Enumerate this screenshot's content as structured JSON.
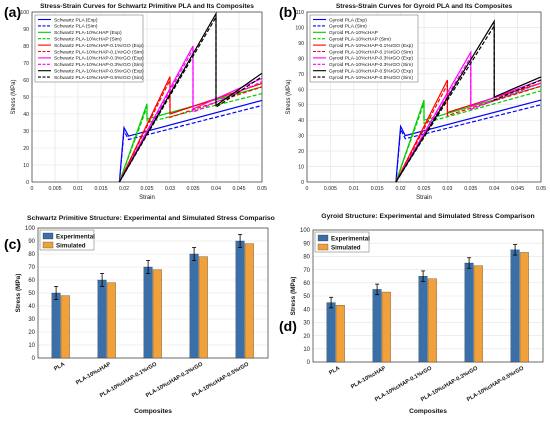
{
  "panels": [
    {
      "label": "(a)"
    },
    {
      "label": "(b)"
    },
    {
      "label": "(c)"
    },
    {
      "label": "(d)"
    }
  ],
  "chart_data": [
    {
      "id": "a",
      "type": "line",
      "title": "Stress-Strain Curves for Schwartz Primitive PLA and Its Composites",
      "xlabel": "Strain",
      "ylabel": "Stress (MPa)",
      "xlim": [
        0,
        0.05
      ],
      "ylim": [
        0,
        100
      ],
      "xticks": [
        "0",
        "0.005",
        "0.01",
        "0.015",
        "0.02",
        "0.025",
        "0.03",
        "0.035",
        "0.04",
        "0.045",
        "0.05"
      ],
      "yticks": [
        "0",
        "10",
        "20",
        "30",
        "40",
        "50",
        "60",
        "70",
        "80",
        "90",
        "100"
      ],
      "grid": true,
      "legend_position": "top-left",
      "series": [
        {
          "name": "Schwartz PLA (Exp)",
          "color": "#0000ff",
          "dash": "solid",
          "points": [
            [
              0.019,
              0
            ],
            [
              0.02,
              32
            ],
            [
              0.021,
              27
            ],
            [
              0.05,
              48
            ]
          ]
        },
        {
          "name": "Schwartz PLA (Sim)",
          "color": "#0000ff",
          "dash": "dashed",
          "points": [
            [
              0.019,
              0
            ],
            [
              0.02,
              30
            ],
            [
              0.021,
              25
            ],
            [
              0.05,
              45
            ]
          ]
        },
        {
          "name": "Schwartz PLA-10%cHAP (Exp)",
          "color": "#00cc00",
          "dash": "solid",
          "points": [
            [
              0.019,
              0
            ],
            [
              0.025,
              46
            ],
            [
              0.025,
              37
            ],
            [
              0.05,
              56
            ]
          ]
        },
        {
          "name": "Schwartz PLA-10%cHAP (Sim)",
          "color": "#00cc00",
          "dash": "dashed",
          "points": [
            [
              0.019,
              0
            ],
            [
              0.025,
              44
            ],
            [
              0.025,
              35
            ],
            [
              0.05,
              52
            ]
          ]
        },
        {
          "name": "Schwartz PLA-10%cHAP-0.1%rGO (Exp)",
          "color": "#ff0000",
          "dash": "solid",
          "points": [
            [
              0.019,
              0
            ],
            [
              0.03,
              62
            ],
            [
              0.03,
              40
            ],
            [
              0.05,
              58
            ]
          ]
        },
        {
          "name": "Schwartz PLA-10%cHAP-0.1%rGO (Sim)",
          "color": "#ff0000",
          "dash": "dashed",
          "points": [
            [
              0.019,
              0
            ],
            [
              0.03,
              60
            ],
            [
              0.03,
              38
            ],
            [
              0.05,
              56
            ]
          ]
        },
        {
          "name": "Schwartz PLA-10%cHAP-0.3%rGO (Exp)",
          "color": "#ff00ff",
          "dash": "solid",
          "points": [
            [
              0.019,
              0
            ],
            [
              0.035,
              80
            ],
            [
              0.035,
              43
            ],
            [
              0.05,
              61
            ]
          ]
        },
        {
          "name": "Schwartz PLA-10%cHAP-0.3%rGO (Sim)",
          "color": "#ff00ff",
          "dash": "dashed",
          "points": [
            [
              0.019,
              0
            ],
            [
              0.035,
              78
            ],
            [
              0.035,
              41
            ],
            [
              0.05,
              59
            ]
          ]
        },
        {
          "name": "Schwartz PLA-10%cHAP-0.5%rGO (Exp)",
          "color": "#000000",
          "dash": "solid",
          "points": [
            [
              0.019,
              0
            ],
            [
              0.04,
              99
            ],
            [
              0.04,
              45
            ],
            [
              0.05,
              64
            ]
          ]
        },
        {
          "name": "Schwartz PLA-10%cHAP-0.5%rGO (Sim)",
          "color": "#000000",
          "dash": "dashed",
          "points": [
            [
              0.019,
              0
            ],
            [
              0.04,
              97
            ],
            [
              0.04,
              44
            ],
            [
              0.05,
              62
            ]
          ]
        }
      ]
    },
    {
      "id": "b",
      "type": "line",
      "title": "Stress-Strain Curves for Gyroid PLA and Its Composites",
      "xlabel": "Strain",
      "ylabel": "Stress (MPa)",
      "xlim": [
        0,
        0.05
      ],
      "ylim": [
        0,
        110
      ],
      "xticks": [
        "0",
        "0.005",
        "0.01",
        "0.015",
        "0.02",
        "0.025",
        "0.03",
        "0.035",
        "0.04",
        "0.045",
        "0.05"
      ],
      "yticks": [
        "0",
        "10",
        "20",
        "30",
        "40",
        "50",
        "60",
        "70",
        "80",
        "90",
        "100",
        "110"
      ],
      "grid": true,
      "legend_position": "top-left",
      "series": [
        {
          "name": "Gyroid PLA (Exp)",
          "color": "#0000ff",
          "dash": "solid",
          "points": [
            [
              0.019,
              0
            ],
            [
              0.02,
              36
            ],
            [
              0.021,
              30
            ],
            [
              0.05,
              53
            ]
          ]
        },
        {
          "name": "Gyroid PLA (Sim)",
          "color": "#0000ff",
          "dash": "dashed",
          "points": [
            [
              0.019,
              0
            ],
            [
              0.02,
              34
            ],
            [
              0.021,
              28
            ],
            [
              0.05,
              50
            ]
          ]
        },
        {
          "name": "Gyroid PLA-10%cHAP",
          "color": "#00cc00",
          "dash": "solid",
          "points": [
            [
              0.019,
              0
            ],
            [
              0.025,
              53
            ],
            [
              0.025,
              40
            ],
            [
              0.05,
              62
            ]
          ]
        },
        {
          "name": "Gyroid PLA-10%cHAP (Sim)",
          "color": "#00cc00",
          "dash": "dashed",
          "points": [
            [
              0.019,
              0
            ],
            [
              0.025,
              51
            ],
            [
              0.025,
              38
            ],
            [
              0.05,
              59
            ]
          ]
        },
        {
          "name": "Gyroid PLA-10%cHAP-0.1%rGO (Exp)",
          "color": "#ff0000",
          "dash": "solid",
          "points": [
            [
              0.019,
              0
            ],
            [
              0.03,
              66
            ],
            [
              0.03,
              45
            ],
            [
              0.05,
              64
            ]
          ]
        },
        {
          "name": "Gyroid PLA-10%cHAP-0.1%rGO (Sim)",
          "color": "#ff0000",
          "dash": "dashed",
          "points": [
            [
              0.019,
              0
            ],
            [
              0.03,
              63
            ],
            [
              0.03,
              43
            ],
            [
              0.05,
              62
            ]
          ]
        },
        {
          "name": "Gyroid PLA-10%cHAP-0.3%rGO (Exp)",
          "color": "#ff00ff",
          "dash": "solid",
          "points": [
            [
              0.019,
              0
            ],
            [
              0.035,
              84
            ],
            [
              0.035,
              49
            ],
            [
              0.05,
              66
            ]
          ]
        },
        {
          "name": "Gyroid PLA-10%cHAP-0.3%rGO (Sim)",
          "color": "#ff00ff",
          "dash": "dashed",
          "points": [
            [
              0.019,
              0
            ],
            [
              0.035,
              81
            ],
            [
              0.035,
              47
            ],
            [
              0.05,
              64
            ]
          ]
        },
        {
          "name": "Gyroid PLA-10%cHAP-0.5%rGO (Exp)",
          "color": "#000000",
          "dash": "solid",
          "points": [
            [
              0.019,
              0
            ],
            [
              0.04,
              104
            ],
            [
              0.04,
              55
            ],
            [
              0.05,
              68
            ]
          ]
        },
        {
          "name": "Gyroid PLA-10%cHAP-0.5%rGO (Sim)",
          "color": "#000000",
          "dash": "dashed",
          "points": [
            [
              0.019,
              0
            ],
            [
              0.04,
              101
            ],
            [
              0.04,
              53
            ],
            [
              0.05,
              66
            ]
          ]
        }
      ]
    },
    {
      "id": "c",
      "type": "bar",
      "title": "Schwartz Primitive Structure: Experimental and Simulated Stress Comparison",
      "xlabel": "Composites",
      "ylabel": "Stress (MPa)",
      "ylim": [
        0,
        100
      ],
      "yticks": [
        "0",
        "10",
        "20",
        "30",
        "40",
        "50",
        "60",
        "70",
        "80",
        "90",
        "100"
      ],
      "grid": true,
      "legend_position": "top-left",
      "categories": [
        "PLA",
        "PLA-10%cHAP",
        "PLA-10%cHAP-0.1%rGO",
        "PLA-10%cHAP-0.3%rGO",
        "PLA-10%cHAP-0.5%rGO"
      ],
      "series": [
        {
          "name": "Experimental",
          "color": "#3a6fa8",
          "values": [
            50,
            60,
            70,
            80,
            90
          ],
          "errors": [
            5,
            5,
            5,
            5,
            5
          ]
        },
        {
          "name": "Simulated",
          "color": "#f0a13c",
          "values": [
            48,
            58,
            68,
            78,
            88
          ]
        }
      ]
    },
    {
      "id": "d",
      "type": "bar",
      "title": "Gyroid Structure: Experimental and Simulated Stress Comparison",
      "xlabel": "Composites",
      "ylabel": "Stress (MPa)",
      "ylim": [
        0,
        100
      ],
      "yticks": [
        "0",
        "10",
        "20",
        "30",
        "40",
        "50",
        "60",
        "70",
        "80",
        "90",
        "100"
      ],
      "grid": true,
      "legend_position": "top-left",
      "categories": [
        "PLA",
        "PLA-10%cHAP",
        "PLA-10%cHAP-0.1%rGO",
        "PLA-10%cHAP-0.3%rGO",
        "PLA-10%cHAP-0.5%rGO"
      ],
      "series": [
        {
          "name": "Experimental",
          "color": "#3a6fa8",
          "values": [
            45,
            55,
            65,
            75,
            85
          ],
          "errors": [
            4,
            4,
            4,
            4,
            4
          ]
        },
        {
          "name": "Simulated",
          "color": "#f0a13c",
          "values": [
            43,
            53,
            63,
            73,
            83
          ]
        }
      ]
    }
  ]
}
